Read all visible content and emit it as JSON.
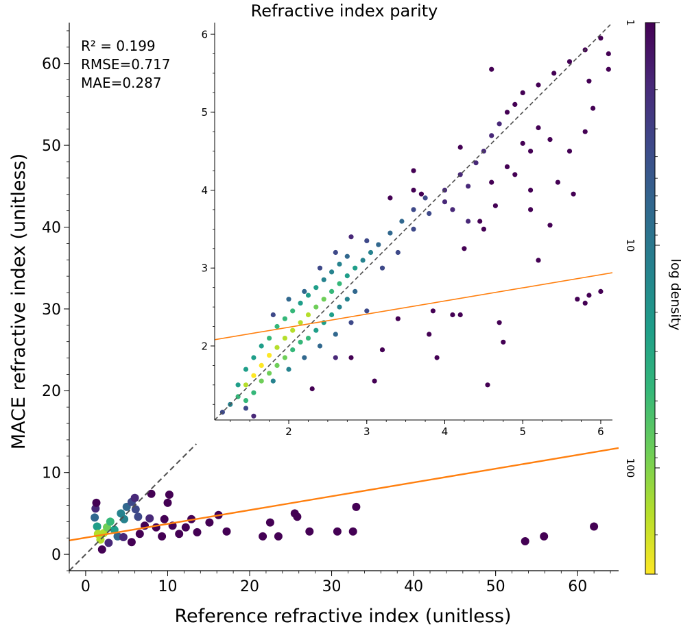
{
  "chart_data": [
    {
      "id": "main",
      "type": "scatter",
      "style": "hexbin-density",
      "title": "",
      "xlabel": "Reference refractive index (unitless)",
      "ylabel": "MACE refractive index (unitless)",
      "xlim": [
        -2,
        65
      ],
      "ylim": [
        -2,
        65
      ],
      "xticks": [
        0,
        10,
        20,
        30,
        40,
        50,
        60
      ],
      "yticks": [
        0,
        10,
        20,
        30,
        40,
        50,
        60
      ],
      "xtick_labels": [
        "0",
        "10",
        "20",
        "30",
        "40",
        "50",
        "60"
      ],
      "ytick_labels": [
        "0",
        "10",
        "20",
        "30",
        "40",
        "50",
        "60"
      ],
      "grid": false,
      "parity_line": {
        "from": [
          -2,
          -2
        ],
        "to": [
          13.5,
          13.5
        ],
        "style": "dashed",
        "color": "#4d4d4d"
      },
      "fit_line": {
        "x": [
          -2,
          65
        ],
        "y": [
          1.7,
          13.0
        ],
        "color": "#ff7f0e"
      },
      "stats": {
        "r2_label": "R² = 0.199",
        "rmse_label": "RMSE=0.717",
        "mae_label": "MAE=0.287"
      },
      "points": [
        [
          1.2,
          5.6,
          2
        ],
        [
          1.3,
          6.3,
          1
        ],
        [
          1.1,
          4.5,
          5
        ],
        [
          1.4,
          3.4,
          30
        ],
        [
          1.5,
          2.5,
          200
        ],
        [
          1.8,
          1.8,
          120
        ],
        [
          2.2,
          2.6,
          150
        ],
        [
          2.6,
          3.3,
          80
        ],
        [
          3.0,
          4.0,
          40
        ],
        [
          3.5,
          3.0,
          20
        ],
        [
          3.9,
          2.2,
          8
        ],
        [
          4.3,
          5.0,
          15
        ],
        [
          4.7,
          4.3,
          10
        ],
        [
          5.0,
          5.8,
          5
        ],
        [
          5.6,
          6.4,
          3
        ],
        [
          6.1,
          5.5,
          4
        ],
        [
          6.4,
          4.6,
          3
        ],
        [
          6.0,
          6.9,
          2
        ],
        [
          2.0,
          0.6,
          1
        ],
        [
          2.8,
          1.4,
          2
        ],
        [
          4.6,
          2.1,
          2
        ],
        [
          5.6,
          1.5,
          1
        ],
        [
          6.6,
          2.5,
          1
        ],
        [
          7.2,
          3.5,
          1
        ],
        [
          7.8,
          4.4,
          2
        ],
        [
          8.6,
          3.3,
          1
        ],
        [
          9.3,
          2.2,
          1
        ],
        [
          10.0,
          6.3,
          1
        ],
        [
          9.6,
          4.3,
          1
        ],
        [
          10.6,
          3.5,
          1
        ],
        [
          11.4,
          2.5,
          1
        ],
        [
          12.2,
          3.3,
          1
        ],
        [
          12.9,
          4.3,
          1
        ],
        [
          13.6,
          2.7,
          1
        ],
        [
          15.1,
          3.9,
          1
        ],
        [
          16.2,
          4.8,
          1
        ],
        [
          17.2,
          2.8,
          1
        ],
        [
          8.0,
          7.4,
          1
        ],
        [
          10.2,
          7.3,
          1
        ],
        [
          21.6,
          2.2,
          1
        ],
        [
          22.5,
          3.9,
          1
        ],
        [
          23.5,
          2.2,
          1
        ],
        [
          25.5,
          5.0,
          1
        ],
        [
          25.8,
          4.6,
          1
        ],
        [
          27.3,
          2.8,
          1
        ],
        [
          30.7,
          2.8,
          1
        ],
        [
          32.6,
          2.8,
          1
        ],
        [
          33.0,
          5.8,
          1
        ],
        [
          53.6,
          1.6,
          1
        ],
        [
          55.9,
          2.2,
          1
        ],
        [
          62.0,
          3.4,
          1
        ]
      ]
    },
    {
      "id": "inset",
      "type": "scatter",
      "style": "hexbin-density",
      "title": "Refractive index parity",
      "xlabel": "",
      "ylabel": "",
      "xlim": [
        1.05,
        6.15
      ],
      "ylim": [
        1.05,
        6.15
      ],
      "xticks": [
        2,
        3,
        4,
        5,
        6
      ],
      "yticks": [
        2,
        3,
        4,
        5,
        6
      ],
      "xtick_labels": [
        "2",
        "3",
        "4",
        "5",
        "6"
      ],
      "ytick_labels": [
        "2",
        "3",
        "4",
        "5",
        "6"
      ],
      "grid": false,
      "parity_line": {
        "from": [
          1.05,
          1.05
        ],
        "to": [
          6.15,
          6.15
        ],
        "style": "dashed",
        "color": "#4d4d4d"
      },
      "fit_line": {
        "x": [
          1.05,
          6.15
        ],
        "y": [
          2.08,
          2.94
        ],
        "color": "#ff7f0e"
      },
      "points": [
        [
          1.15,
          1.15,
          3
        ],
        [
          1.25,
          1.25,
          15
        ],
        [
          1.35,
          1.35,
          60
        ],
        [
          1.45,
          1.5,
          150
        ],
        [
          1.55,
          1.62,
          220
        ],
        [
          1.65,
          1.75,
          240
        ],
        [
          1.75,
          1.88,
          220
        ],
        [
          1.85,
          1.98,
          200
        ],
        [
          1.95,
          2.1,
          180
        ],
        [
          2.05,
          2.2,
          160
        ],
        [
          2.15,
          2.3,
          140
        ],
        [
          2.25,
          2.4,
          120
        ],
        [
          2.35,
          2.5,
          100
        ],
        [
          2.45,
          2.6,
          80
        ],
        [
          2.55,
          2.7,
          60
        ],
        [
          2.65,
          2.8,
          40
        ],
        [
          2.75,
          2.9,
          30
        ],
        [
          2.85,
          3.0,
          20
        ],
        [
          2.95,
          3.1,
          15
        ],
        [
          3.05,
          3.2,
          10
        ],
        [
          3.15,
          3.3,
          8
        ],
        [
          3.3,
          3.45,
          6
        ],
        [
          3.45,
          3.6,
          5
        ],
        [
          3.6,
          3.75,
          4
        ],
        [
          3.75,
          3.9,
          3
        ],
        [
          1.45,
          1.3,
          40
        ],
        [
          1.55,
          1.4,
          60
        ],
        [
          1.65,
          1.55,
          80
        ],
        [
          1.75,
          1.65,
          90
        ],
        [
          1.85,
          1.75,
          80
        ],
        [
          1.95,
          1.85,
          70
        ],
        [
          2.05,
          1.95,
          60
        ],
        [
          2.15,
          2.05,
          50
        ],
        [
          2.25,
          2.1,
          40
        ],
        [
          2.35,
          2.2,
          30
        ],
        [
          2.45,
          2.3,
          25
        ],
        [
          2.55,
          2.4,
          20
        ],
        [
          2.65,
          2.5,
          15
        ],
        [
          2.75,
          2.6,
          10
        ],
        [
          2.85,
          2.7,
          8
        ],
        [
          1.35,
          1.5,
          30
        ],
        [
          1.45,
          1.7,
          20
        ],
        [
          1.55,
          1.85,
          25
        ],
        [
          1.65,
          2.0,
          30
        ],
        [
          1.75,
          2.1,
          35
        ],
        [
          1.85,
          2.25,
          40
        ],
        [
          1.95,
          2.35,
          40
        ],
        [
          2.05,
          2.45,
          35
        ],
        [
          2.15,
          2.55,
          30
        ],
        [
          2.25,
          2.65,
          25
        ],
        [
          2.35,
          2.75,
          20
        ],
        [
          2.45,
          2.85,
          15
        ],
        [
          2.55,
          2.95,
          12
        ],
        [
          2.65,
          3.05,
          10
        ],
        [
          2.75,
          3.15,
          8
        ],
        [
          1.8,
          1.55,
          12
        ],
        [
          2.0,
          1.7,
          10
        ],
        [
          2.2,
          1.85,
          8
        ],
        [
          2.4,
          2.0,
          6
        ],
        [
          2.6,
          2.15,
          5
        ],
        [
          2.8,
          2.3,
          4
        ],
        [
          3.0,
          2.45,
          3
        ],
        [
          2.2,
          2.7,
          6
        ],
        [
          2.4,
          3.0,
          4
        ],
        [
          2.6,
          3.2,
          3
        ],
        [
          2.8,
          3.4,
          2
        ],
        [
          2.0,
          2.6,
          5
        ],
        [
          1.8,
          2.4,
          4
        ],
        [
          3.2,
          3.0,
          4
        ],
        [
          3.4,
          3.2,
          3
        ],
        [
          3.6,
          3.5,
          3
        ],
        [
          3.8,
          3.7,
          3
        ],
        [
          4.0,
          4.0,
          2
        ],
        [
          4.1,
          3.75,
          2
        ],
        [
          4.2,
          4.2,
          2
        ],
        [
          4.3,
          4.05,
          2
        ],
        [
          4.4,
          4.35,
          2
        ],
        [
          4.5,
          4.5,
          2
        ],
        [
          4.6,
          4.7,
          2
        ],
        [
          4.7,
          4.85,
          2
        ],
        [
          4.8,
          5.0,
          1
        ],
        [
          4.9,
          5.1,
          1
        ],
        [
          5.0,
          5.25,
          1
        ],
        [
          5.2,
          5.35,
          1
        ],
        [
          5.4,
          5.5,
          1
        ],
        [
          5.6,
          5.65,
          1
        ],
        [
          5.8,
          5.8,
          1
        ],
        [
          6.0,
          5.95,
          1
        ],
        [
          4.6,
          4.1,
          1
        ],
        [
          4.8,
          4.3,
          1
        ],
        [
          5.0,
          4.6,
          1
        ],
        [
          5.2,
          4.8,
          1
        ],
        [
          4.25,
          3.25,
          1
        ],
        [
          4.45,
          3.6,
          1
        ],
        [
          4.65,
          3.8,
          1
        ],
        [
          4.9,
          4.2,
          1
        ],
        [
          5.1,
          4.0,
          1
        ],
        [
          5.1,
          4.5,
          1
        ],
        [
          5.35,
          4.65,
          1
        ],
        [
          5.6,
          4.5,
          1
        ],
        [
          5.8,
          4.75,
          1
        ],
        [
          5.85,
          5.4,
          1
        ],
        [
          5.9,
          5.05,
          1
        ],
        [
          6.1,
          5.55,
          1
        ],
        [
          6.1,
          5.75,
          1
        ],
        [
          5.1,
          3.75,
          1
        ],
        [
          5.2,
          3.1,
          1
        ],
        [
          5.35,
          3.55,
          1
        ],
        [
          5.45,
          4.1,
          1
        ],
        [
          5.65,
          3.95,
          1
        ],
        [
          4.6,
          5.55,
          1
        ],
        [
          4.2,
          4.55,
          1
        ],
        [
          3.6,
          4.25,
          1
        ],
        [
          3.7,
          3.95,
          1
        ],
        [
          3.85,
          2.45,
          1
        ],
        [
          3.4,
          2.35,
          1
        ],
        [
          3.2,
          1.95,
          1
        ],
        [
          3.1,
          1.55,
          1
        ],
        [
          3.9,
          1.85,
          1
        ],
        [
          4.55,
          1.5,
          1
        ],
        [
          4.75,
          2.05,
          1
        ],
        [
          4.7,
          2.3,
          1
        ],
        [
          4.2,
          2.4,
          1
        ],
        [
          4.1,
          2.4,
          1
        ],
        [
          3.8,
          2.15,
          1
        ],
        [
          5.8,
          2.55,
          1
        ],
        [
          5.85,
          2.65,
          1
        ],
        [
          6.0,
          2.7,
          1
        ],
        [
          5.7,
          2.6,
          1
        ],
        [
          2.8,
          1.85,
          1
        ],
        [
          2.6,
          1.85,
          2
        ],
        [
          2.3,
          1.45,
          1
        ],
        [
          1.55,
          1.1,
          2
        ],
        [
          1.45,
          1.2,
          3
        ],
        [
          3.0,
          3.35,
          3
        ],
        [
          3.3,
          3.9,
          1
        ],
        [
          3.6,
          4.0,
          1
        ],
        [
          4.0,
          3.85,
          2
        ],
        [
          4.3,
          3.6,
          2
        ],
        [
          4.5,
          3.5,
          1
        ]
      ]
    }
  ],
  "colorbar": {
    "label": "log density",
    "tick_labels": [
      "1",
      "10",
      "100"
    ],
    "tick_values": [
      1,
      10,
      100
    ],
    "max_value": 300,
    "colormap": "viridis_r",
    "colors": [
      "#440154",
      "#482878",
      "#3e4989",
      "#31688e",
      "#26828e",
      "#1f9e89",
      "#35b779",
      "#6ece58",
      "#b5de2b",
      "#fde725"
    ]
  },
  "colors": {
    "fit": "#ff7f0e",
    "parity": "#4d4d4d",
    "axis": "#000000"
  }
}
